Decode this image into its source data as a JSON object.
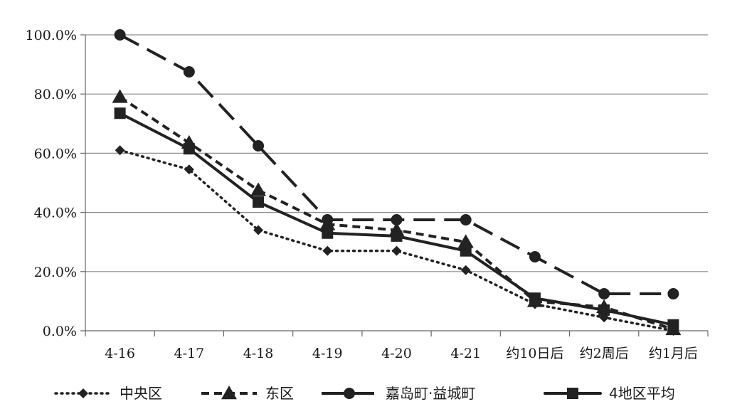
{
  "chart_data": {
    "type": "line",
    "categories": [
      "4-16",
      "4-17",
      "4-18",
      "4-19",
      "4-20",
      "4-21",
      "约10日后",
      "约2周后",
      "约1月后"
    ],
    "y_tick_labels": [
      "0.0%",
      "20.0%",
      "40.0%",
      "60.0%",
      "80.0%",
      "100.0%"
    ],
    "ylim": [
      0,
      100
    ],
    "y_unit": "percent",
    "grid": true,
    "legend_position": "bottom",
    "series": [
      {
        "name": "中央区",
        "marker": "diamond",
        "line_style": "dotted",
        "color": "#222222",
        "values": [
          61,
          54.5,
          34,
          27,
          27,
          20.5,
          9,
          4.5,
          0
        ]
      },
      {
        "name": "东区",
        "marker": "triangle",
        "line_style": "dashed",
        "color": "#222222",
        "values": [
          79,
          63.5,
          47.5,
          36,
          34,
          30,
          10,
          8,
          0.5
        ]
      },
      {
        "name": "嘉岛町·益城町",
        "marker": "circle",
        "line_style": "long-dash",
        "color": "#222222",
        "values": [
          100,
          87.5,
          62.5,
          37.5,
          37.5,
          37.5,
          25,
          12.5,
          12.5
        ]
      },
      {
        "name": "4地区平均",
        "marker": "square",
        "line_style": "solid",
        "color": "#222222",
        "values": [
          73.5,
          61.5,
          43.5,
          33,
          32,
          27,
          11,
          7,
          2
        ]
      }
    ]
  }
}
